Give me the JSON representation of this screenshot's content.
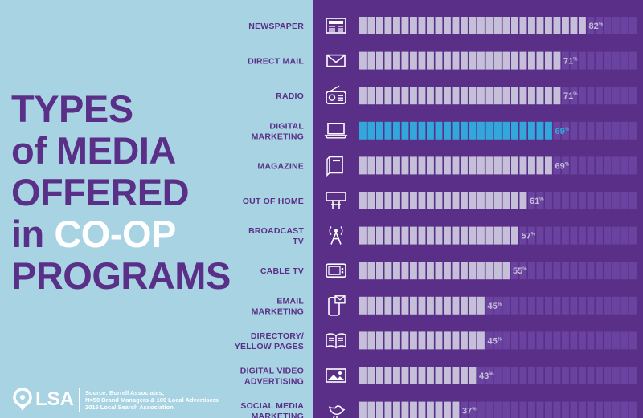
{
  "title": {
    "line1": "TYPES",
    "line2": "of MEDIA",
    "line3": "OFFERED",
    "line4_prefix": "in ",
    "line4_highlight": "CO-OP",
    "line5": "PROGRAMS"
  },
  "footer": {
    "logo_text": "LSA",
    "source_line1": "Source: Borrell Associates;",
    "source_line2": "N=50 Brand Managers & 100 Local Advertisers",
    "source_line3": "2015 Local Search Association"
  },
  "colors": {
    "background": "#a8d3e3",
    "panel": "#5a2f87",
    "bar_segment": "#c5bfd9",
    "bar_empty": "#6a43a0",
    "highlight": "#33a6db",
    "title_highlight": "#ffffff"
  },
  "chart_data": {
    "type": "bar",
    "orientation": "horizontal",
    "xlim": [
      0,
      100
    ],
    "unit": "%",
    "highlight_category": "DIGITAL MARKETING",
    "categories": [
      {
        "label_lines": [
          "NEWSPAPER"
        ],
        "icon": "newspaper-icon",
        "value": 82
      },
      {
        "label_lines": [
          "DIRECT MAIL"
        ],
        "icon": "envelope-icon",
        "value": 71
      },
      {
        "label_lines": [
          "RADIO"
        ],
        "icon": "radio-icon",
        "value": 71
      },
      {
        "label_lines": [
          "DIGITAL",
          "MARKETING"
        ],
        "icon": "laptop-icon",
        "value": 69
      },
      {
        "label_lines": [
          "MAGAZINE"
        ],
        "icon": "magazine-icon",
        "value": 69
      },
      {
        "label_lines": [
          "OUT OF HOME"
        ],
        "icon": "billboard-icon",
        "value": 61
      },
      {
        "label_lines": [
          "BROADCAST",
          "TV"
        ],
        "icon": "broadcast-tower-icon",
        "value": 57
      },
      {
        "label_lines": [
          "CABLE TV"
        ],
        "icon": "television-icon",
        "value": 55
      },
      {
        "label_lines": [
          "EMAIL",
          "MARKETING"
        ],
        "icon": "smartphone-email-icon",
        "value": 45
      },
      {
        "label_lines": [
          "DIRECTORY/",
          "YELLOW PAGES"
        ],
        "icon": "open-book-icon",
        "value": 45
      },
      {
        "label_lines": [
          "DIGITAL VIDEO",
          "ADVERTISING"
        ],
        "icon": "video-image-icon",
        "value": 43
      },
      {
        "label_lines": [
          "SOCIAL MEDIA",
          "MARKETING"
        ],
        "icon": "bird-icon",
        "value": 37
      }
    ]
  }
}
